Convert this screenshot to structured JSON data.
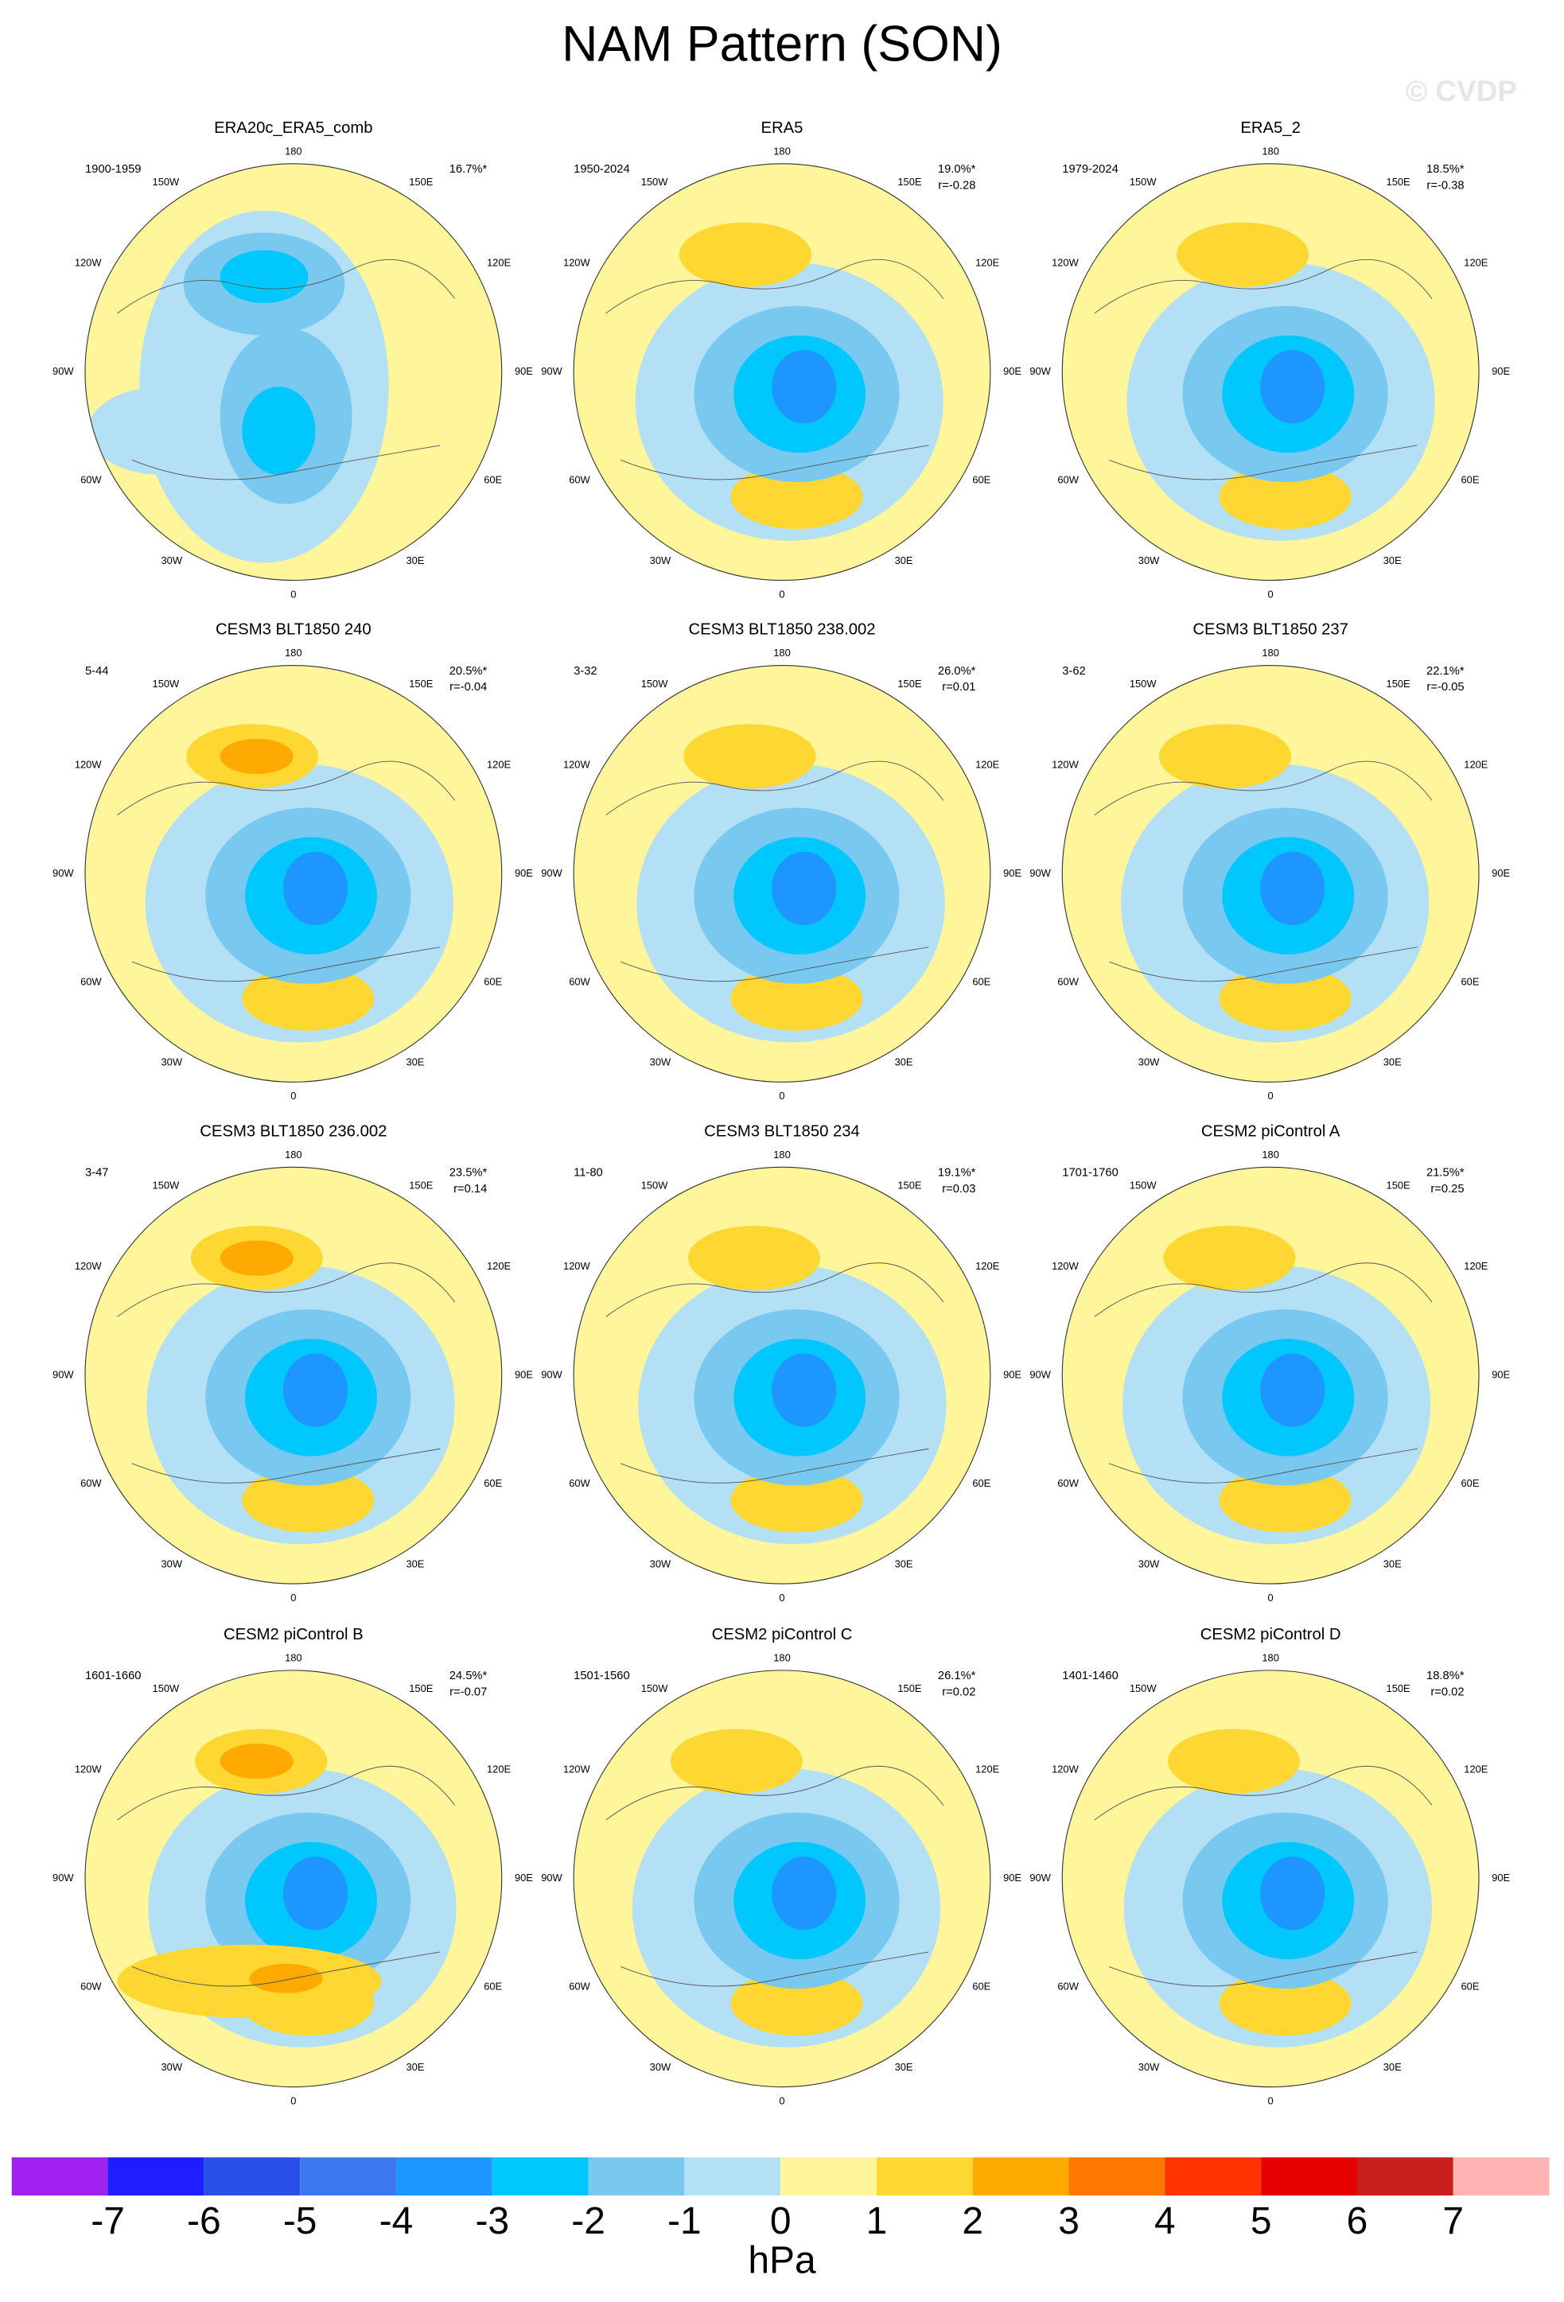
{
  "title": "NAM Pattern (SON)",
  "watermark": "© CVDP",
  "lon_labels": [
    "180",
    "150E",
    "120E",
    "90E",
    "60E",
    "30E",
    "0",
    "30W",
    "60W",
    "90W",
    "120W",
    "150W"
  ],
  "panels": [
    {
      "title": "ERA20c_ERA5_comb",
      "period": "1900-1959",
      "pct": "16.7%*"
    },
    {
      "title": "ERA5",
      "period": "1950-2024",
      "pct": "19.0%*",
      "r": "r=-0.28"
    },
    {
      "title": "ERA5_2",
      "period": "1979-2024",
      "pct": "18.5%*",
      "r": "r=-0.38"
    },
    {
      "title": "CESM3 BLT1850 240",
      "period": "5-44",
      "pct": "20.5%*",
      "r": "r=-0.04"
    },
    {
      "title": "CESM3 BLT1850 238.002",
      "period": "3-32",
      "pct": "26.0%*",
      "r": "r=0.01"
    },
    {
      "title": "CESM3 BLT1850 237",
      "period": "3-62",
      "pct": "22.1%*",
      "r": "r=-0.05"
    },
    {
      "title": "CESM3 BLT1850 236.002",
      "period": "3-47",
      "pct": "23.5%*",
      "r": "r=0.14"
    },
    {
      "title": "CESM3 BLT1850 234",
      "period": "11-80",
      "pct": "19.1%*",
      "r": "r=0.03"
    },
    {
      "title": "CESM2 piControl A",
      "period": "1701-1760",
      "pct": "21.5%*",
      "r": "r=0.25"
    },
    {
      "title": "CESM2 piControl B",
      "period": "1601-1660",
      "pct": "24.5%*",
      "r": "r=-0.07"
    },
    {
      "title": "CESM2 piControl C",
      "period": "1501-1560",
      "pct": "26.1%*",
      "r": "r=0.02"
    },
    {
      "title": "CESM2 piControl D",
      "period": "1401-1460",
      "pct": "18.8%*",
      "r": "r=0.02"
    }
  ],
  "colorbar": {
    "ticks": [
      -7,
      -6,
      -5,
      -4,
      -3,
      -2,
      -1,
      0,
      1,
      2,
      3,
      4,
      5,
      6,
      7
    ],
    "units": "hPa",
    "colors": [
      "#a020f0",
      "#1e1eff",
      "#2850e6",
      "#3c78f0",
      "#1e96ff",
      "#00c8ff",
      "#78c8f0",
      "#b4e0f5",
      "#fff59b",
      "#ffd732",
      "#ffaa00",
      "#ff7800",
      "#ff3200",
      "#e60000",
      "#c81e1e",
      "#ffb4b4"
    ]
  }
}
